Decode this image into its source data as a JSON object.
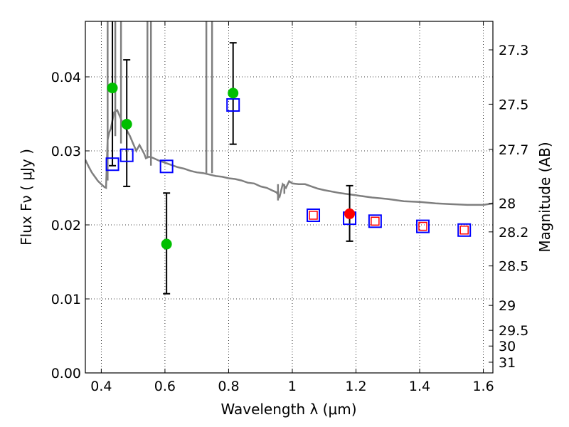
{
  "chart_data": {
    "type": "scatter",
    "xlabel": "Wavelength  λ (μm)",
    "ylabel": "Flux  Fν  ( μJy )",
    "y2label": "Magnitude (AB)",
    "xlim": [
      0.35,
      1.63
    ],
    "ylim": [
      0.0,
      0.0475
    ],
    "grid": true,
    "x_ticks": [
      {
        "value": 0.4,
        "label": "0.4"
      },
      {
        "value": 0.6,
        "label": "0.6"
      },
      {
        "value": 0.8,
        "label": "0.8"
      },
      {
        "value": 1.0,
        "label": "1"
      },
      {
        "value": 1.2,
        "label": "1.2"
      },
      {
        "value": 1.4,
        "label": "1.4"
      },
      {
        "value": 1.6,
        "label": "1.6"
      }
    ],
    "y_ticks": [
      {
        "value": 0.0,
        "label": "0.00"
      },
      {
        "value": 0.01,
        "label": "0.01"
      },
      {
        "value": 0.02,
        "label": "0.02"
      },
      {
        "value": 0.03,
        "label": "0.03"
      },
      {
        "value": 0.04,
        "label": "0.04"
      }
    ],
    "y2_ticks": [
      {
        "mag": 27.3,
        "label": "27.3"
      },
      {
        "mag": 27.5,
        "label": "27.5"
      },
      {
        "mag": 27.7,
        "label": "27.7"
      },
      {
        "mag": 28.0,
        "label": "28"
      },
      {
        "mag": 28.2,
        "label": "28.2"
      },
      {
        "mag": 28.5,
        "label": "28.5"
      },
      {
        "mag": 29.0,
        "label": "29"
      },
      {
        "mag": 29.5,
        "label": "29.5"
      },
      {
        "mag": 30.0,
        "label": "30"
      },
      {
        "mag": 31.0,
        "label": "31"
      }
    ],
    "model_sed": {
      "color": "#7f7f7f",
      "x": [
        0.35,
        0.36,
        0.37,
        0.38,
        0.39,
        0.4,
        0.41,
        0.415,
        0.42,
        0.425,
        0.43,
        0.44,
        0.45,
        0.46,
        0.47,
        0.48,
        0.49,
        0.5,
        0.51,
        0.52,
        0.53,
        0.535,
        0.54,
        0.55,
        0.56,
        0.58,
        0.6,
        0.62,
        0.64,
        0.66,
        0.68,
        0.7,
        0.72,
        0.74,
        0.76,
        0.78,
        0.8,
        0.82,
        0.84,
        0.86,
        0.88,
        0.9,
        0.92,
        0.94,
        0.95,
        0.96,
        0.97,
        0.98,
        0.99,
        1.0,
        1.02,
        1.04,
        1.06,
        1.08,
        1.1,
        1.15,
        1.2,
        1.25,
        1.3,
        1.35,
        1.4,
        1.45,
        1.5,
        1.55,
        1.6,
        1.63
      ],
      "y": [
        0.0288,
        0.0279,
        0.0271,
        0.0265,
        0.0259,
        0.0255,
        0.0251,
        0.025,
        0.0315,
        0.0325,
        0.033,
        0.0352,
        0.0355,
        0.0345,
        0.0335,
        0.0328,
        0.032,
        0.031,
        0.03,
        0.0308,
        0.03,
        0.0296,
        0.029,
        0.0292,
        0.0291,
        0.0287,
        0.0284,
        0.0281,
        0.0278,
        0.0276,
        0.0273,
        0.0271,
        0.027,
        0.0268,
        0.0266,
        0.0265,
        0.0263,
        0.0262,
        0.026,
        0.0257,
        0.0256,
        0.0252,
        0.025,
        0.0246,
        0.0244,
        0.0238,
        0.0255,
        0.025,
        0.0259,
        0.0256,
        0.0255,
        0.0255,
        0.0252,
        0.0249,
        0.0247,
        0.0243,
        0.024,
        0.0237,
        0.0235,
        0.0232,
        0.0231,
        0.0229,
        0.0228,
        0.0227,
        0.0227,
        0.0229
      ],
      "spikes": [
        {
          "x": 0.42,
          "base": 0.026
        },
        {
          "x": 0.444,
          "base": 0.032
        },
        {
          "x": 0.462,
          "base": 0.031
        },
        {
          "x": 0.545,
          "base": 0.029
        },
        {
          "x": 0.556,
          "base": 0.028
        },
        {
          "x": 0.73,
          "base": 0.027
        },
        {
          "x": 0.748,
          "base": 0.027
        }
      ],
      "dips": [
        {
          "x": 0.955,
          "low": 0.0233
        },
        {
          "x": 0.975,
          "low": 0.0242
        }
      ]
    },
    "series": [
      {
        "name": "observed-green",
        "color": "#00bf00",
        "points": [
          {
            "x": 0.435,
            "y": 0.0385,
            "err_lo": 0.0105,
            "err_hi": 0.012
          },
          {
            "x": 0.48,
            "y": 0.0336,
            "err_lo": 0.0084,
            "err_hi": 0.0087
          },
          {
            "x": 0.605,
            "y": 0.0174,
            "err_lo": 0.0067,
            "err_hi": 0.0069
          },
          {
            "x": 0.814,
            "y": 0.0378,
            "err_lo": 0.0069,
            "err_hi": 0.0068
          }
        ]
      },
      {
        "name": "observed-red",
        "color": "#ff0000",
        "points": [
          {
            "x": 1.18,
            "y": 0.0215,
            "err_lo": 0.0037,
            "err_hi": 0.0038
          }
        ]
      },
      {
        "name": "model-blue-squares",
        "color": "#0000ff",
        "points": [
          {
            "x": 0.435,
            "y": 0.0282
          },
          {
            "x": 0.48,
            "y": 0.0294
          },
          {
            "x": 0.605,
            "y": 0.0279
          },
          {
            "x": 0.814,
            "y": 0.0362
          },
          {
            "x": 1.066,
            "y": 0.0213
          },
          {
            "x": 1.18,
            "y": 0.0209
          },
          {
            "x": 1.26,
            "y": 0.0205
          },
          {
            "x": 1.41,
            "y": 0.0198
          },
          {
            "x": 1.54,
            "y": 0.0193
          }
        ]
      },
      {
        "name": "model-red-squares",
        "color": "#ff0000",
        "points": [
          {
            "x": 1.066,
            "y": 0.0213
          },
          {
            "x": 1.26,
            "y": 0.0205
          },
          {
            "x": 1.41,
            "y": 0.0198
          },
          {
            "x": 1.54,
            "y": 0.0193
          }
        ]
      }
    ]
  }
}
